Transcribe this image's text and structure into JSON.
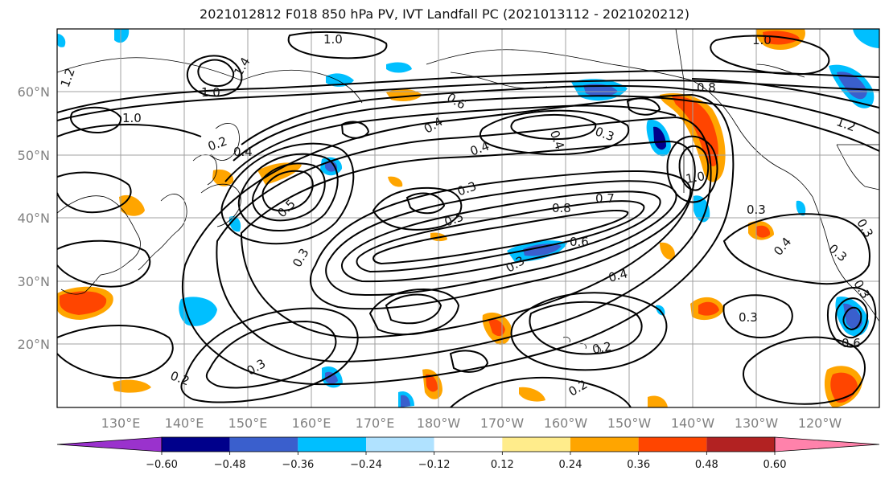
{
  "title": "2021012812 F018 850 hPa PV, IVT Landfall PC (2021013112 - 2021020212)",
  "lon_ticks": [
    "130°E",
    "140°E",
    "150°E",
    "160°E",
    "170°E",
    "180°W",
    "170°W",
    "160°W",
    "150°W",
    "140°W",
    "130°W",
    "120°W"
  ],
  "lat_ticks": [
    "60°N",
    "50°N",
    "40°N",
    "30°N",
    "20°N"
  ],
  "contour_labels": [
    "1.0",
    "1.0",
    "1.0",
    "1.2",
    "1.2",
    "1.4",
    "1.0",
    "0.2",
    "0.4",
    "0.4",
    "0.5",
    "0.3",
    "0.6",
    "0.4",
    "0.3",
    "0.4",
    "0.3",
    "0.5",
    "0.8",
    "0.7",
    "0.6",
    "0.4",
    "0.3",
    "0.3",
    "0.2",
    "0.2",
    "0.3",
    "0.8",
    "1.0",
    "0.3",
    "0.4",
    "0.3",
    "0.3",
    "0.3",
    "0.6",
    "0.2"
  ],
  "colorbar": {
    "levels": [
      "−0.60",
      "−0.48",
      "−0.36",
      "−0.24",
      "−0.12",
      "0.12",
      "0.24",
      "0.36",
      "0.48",
      "0.60"
    ],
    "colors": [
      "#9a32cd",
      "#00008b",
      "#3a5fcd",
      "#00bfff",
      "#b0e2ff",
      "#ffffff",
      "#ffec8b",
      "#ffa500",
      "#ff4500",
      "#b22222",
      "#ff82ab"
    ]
  }
}
